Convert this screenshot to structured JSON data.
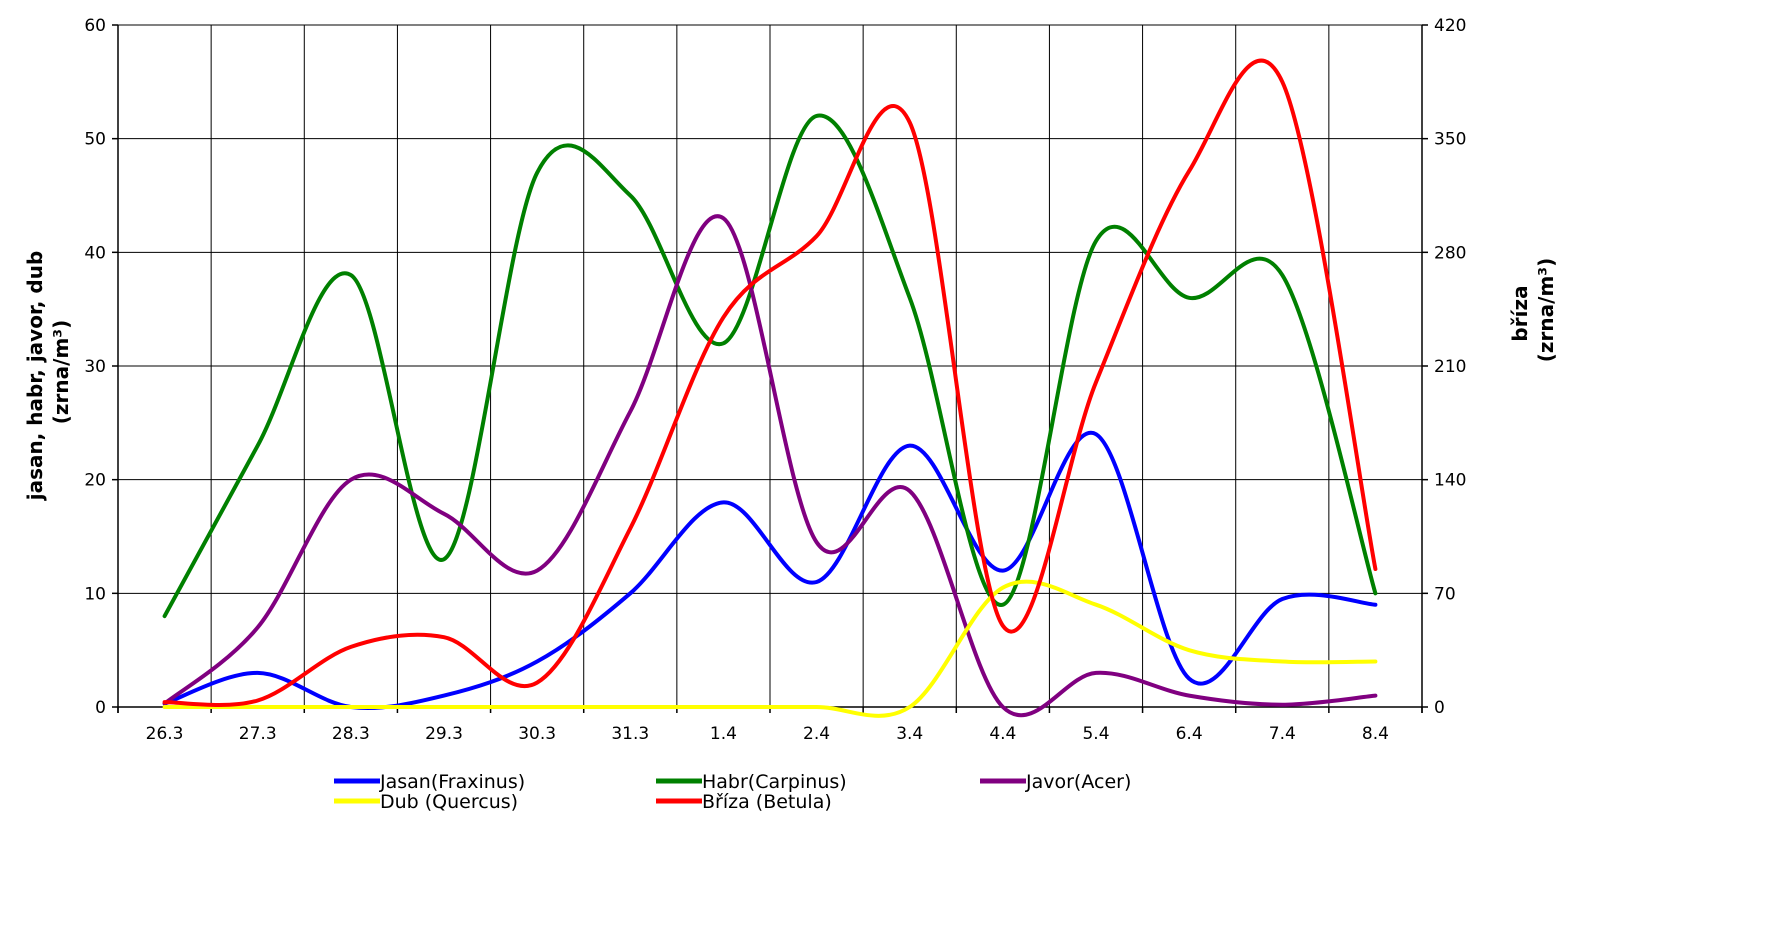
{
  "chart_data": {
    "type": "line",
    "title": "",
    "x": [
      "26.3",
      "27.3",
      "28.3",
      "29.3",
      "30.3",
      "31.3",
      "1.4",
      "2.4",
      "3.4",
      "4.4",
      "5.4",
      "6.4",
      "7.4",
      "8.4"
    ],
    "y_left": {
      "label_lines": [
        "jasan, habr, javor, dub",
        "(zrna/m³)"
      ],
      "ylim": [
        0,
        60
      ],
      "ticks": [
        0,
        10,
        20,
        30,
        40,
        50,
        60
      ]
    },
    "y_right": {
      "label_lines": [
        "bříza",
        "(zrna/m³)"
      ],
      "ylim": [
        0,
        420
      ],
      "ticks": [
        0,
        70,
        140,
        210,
        280,
        350,
        420
      ]
    },
    "grid": true,
    "legend_position": "bottom",
    "series": [
      {
        "name": "Jasan(Fraxinus)",
        "color": "#0000ff",
        "axis": "left",
        "values": [
          0.3,
          3,
          0,
          1,
          4,
          10,
          18,
          11,
          23,
          12,
          24,
          2.5,
          9.5,
          9
        ]
      },
      {
        "name": "Habr(Carpinus)",
        "color": "#008000",
        "axis": "left",
        "values": [
          8,
          23,
          38,
          13,
          47,
          45,
          32,
          52,
          36,
          9,
          41,
          36,
          38,
          10
        ]
      },
      {
        "name": "Javor(Acer)",
        "color": "#800080",
        "axis": "left",
        "values": [
          0.3,
          7,
          20,
          17,
          12,
          26,
          43,
          14.5,
          19,
          0,
          3,
          1,
          0.2,
          1
        ]
      },
      {
        "name": "Dub (Quercus)",
        "color": "#ffff00",
        "axis": "left",
        "values": [
          0,
          0,
          0,
          0,
          0,
          0,
          0,
          0,
          0,
          10.5,
          9,
          5,
          4,
          4
        ]
      },
      {
        "name": "Bříza (Betula)",
        "color": "#ff0000",
        "axis": "right",
        "values": [
          3,
          4,
          37,
          43,
          15,
          110,
          240,
          290,
          360,
          50,
          200,
          330,
          385,
          85
        ]
      }
    ]
  }
}
